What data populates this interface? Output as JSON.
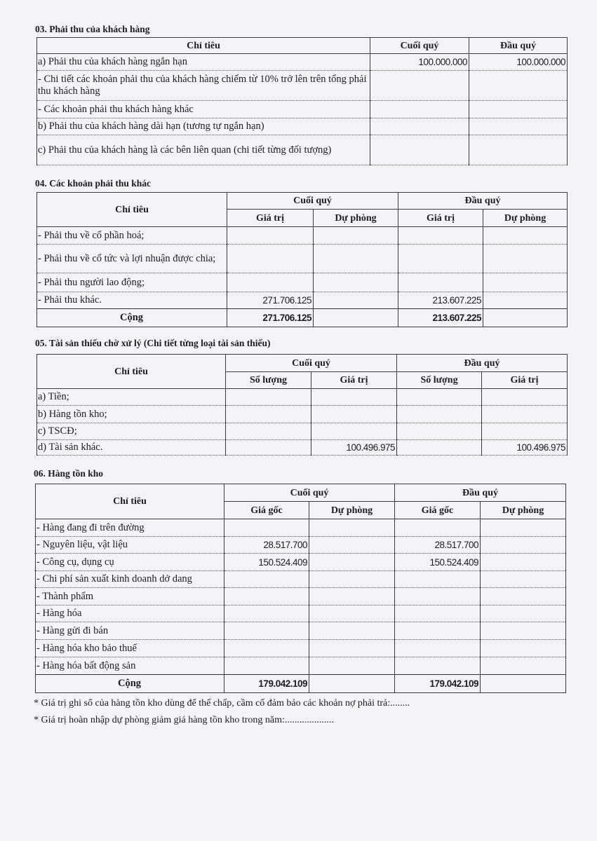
{
  "sections": [
    {
      "title": "03. Phải thu của khách hàng",
      "header_rows": [
        [
          "Chỉ tiêu",
          "Cuối quý",
          "Đầu quý"
        ]
      ],
      "rows": [
        {
          "label": "a) Phải thu của khách hàng ngắn hạn",
          "values": [
            "100.000.000",
            "100.000.000"
          ]
        },
        {
          "label": "- Chi tiết các khoản phải thu của khách hàng chiếm từ 10% trở lên trên tổng phải thu khách hàng",
          "values": [
            "",
            ""
          ]
        },
        {
          "label": "- Các khoản phải thu khách hàng khác",
          "values": [
            "",
            ""
          ]
        },
        {
          "label": "b) Phải thu của khách hàng dài hạn (tương tự ngắn hạn)",
          "values": [
            "",
            ""
          ]
        },
        {
          "label": "c) Phải thu của khách hàng là các bên liên quan (chi tiết từng đối tượng)",
          "values": [
            "",
            ""
          ]
        }
      ]
    },
    {
      "title": "04. Các khoản phải thu khác",
      "header_rows": [
        [
          "Chỉ tiêu",
          "Cuối quý",
          "Đầu quý"
        ],
        [
          "Giá trị",
          "Dự phòng",
          "Giá trị",
          "Dự phòng"
        ]
      ],
      "rows": [
        {
          "label": "- Phải thu về cổ phần hoá;",
          "values": [
            "",
            "",
            "",
            ""
          ]
        },
        {
          "label": "- Phải thu về cổ tức và lợi nhuận được chia;",
          "values": [
            "",
            "",
            "",
            ""
          ]
        },
        {
          "label": "- Phải thu người lao động;",
          "values": [
            "",
            "",
            "",
            ""
          ]
        },
        {
          "label": "- Phải thu khác.",
          "values": [
            "271.706.125",
            "",
            "213.607.225",
            ""
          ]
        },
        {
          "label": "Cộng",
          "values": [
            "271.706.125",
            "",
            "213.607.225",
            ""
          ],
          "total": true
        }
      ]
    },
    {
      "title": "05. Tài sản thiếu chờ xử lý (Chi tiết từng loại tài sản thiếu)",
      "header_rows": [
        [
          "Chỉ tiêu",
          "Cuối quý",
          "Đầu quý"
        ],
        [
          "Số lượng",
          "Giá trị",
          "Số lượng",
          "Giá trị"
        ]
      ],
      "rows": [
        {
          "label": "a) Tiền;",
          "values": [
            "",
            "",
            "",
            ""
          ]
        },
        {
          "label": "b) Hàng tồn kho;",
          "values": [
            "",
            "",
            "",
            ""
          ]
        },
        {
          "label": "c) TSCĐ;",
          "values": [
            "",
            "",
            "",
            ""
          ]
        },
        {
          "label": "d) Tài sản khác.",
          "values": [
            "",
            "100.496.975",
            "",
            "100.496.975"
          ]
        }
      ]
    },
    {
      "title": "06. Hàng tồn kho",
      "header_rows": [
        [
          "Chỉ tiêu",
          "Cuối quý",
          "Đầu quý"
        ],
        [
          "Giá gốc",
          "Dự phòng",
          "Giá gốc",
          "Dự phòng"
        ]
      ],
      "rows": [
        {
          "label": "- Hàng đang đi trên đường",
          "values": [
            "",
            "",
            "",
            ""
          ]
        },
        {
          "label": "- Nguyên liệu, vật liệu",
          "values": [
            "28.517.700",
            "",
            "28.517.700",
            ""
          ]
        },
        {
          "label": "- Công cụ, dụng cụ",
          "values": [
            "150.524.409",
            "",
            "150.524.409",
            ""
          ]
        },
        {
          "label": "- Chi phí sản xuất kinh doanh dở dang",
          "values": [
            "",
            "",
            "",
            ""
          ]
        },
        {
          "label": "- Thành phẩm",
          "values": [
            "",
            "",
            "",
            ""
          ]
        },
        {
          "label": "- Hàng hóa",
          "values": [
            "",
            "",
            "",
            ""
          ]
        },
        {
          "label": "- Hàng gửi đi bán",
          "values": [
            "",
            "",
            "",
            ""
          ]
        },
        {
          "label": "- Hàng hóa kho bảo thuế",
          "values": [
            "",
            "",
            "",
            ""
          ]
        },
        {
          "label": "- Hàng hóa bất động sản",
          "values": [
            "",
            "",
            "",
            ""
          ]
        },
        {
          "label": "Cộng",
          "values": [
            "179.042.109",
            "",
            "179.042.109",
            ""
          ],
          "total": true
        }
      ]
    }
  ],
  "notes": [
    "* Giá trị ghi sổ của hàng tồn kho dùng để thế chấp, cầm cố đảm bảo các khoản nợ phải trả:........",
    "* Giá trị hoàn nhập dự phòng giảm giá hàng tồn kho trong năm:...................."
  ]
}
